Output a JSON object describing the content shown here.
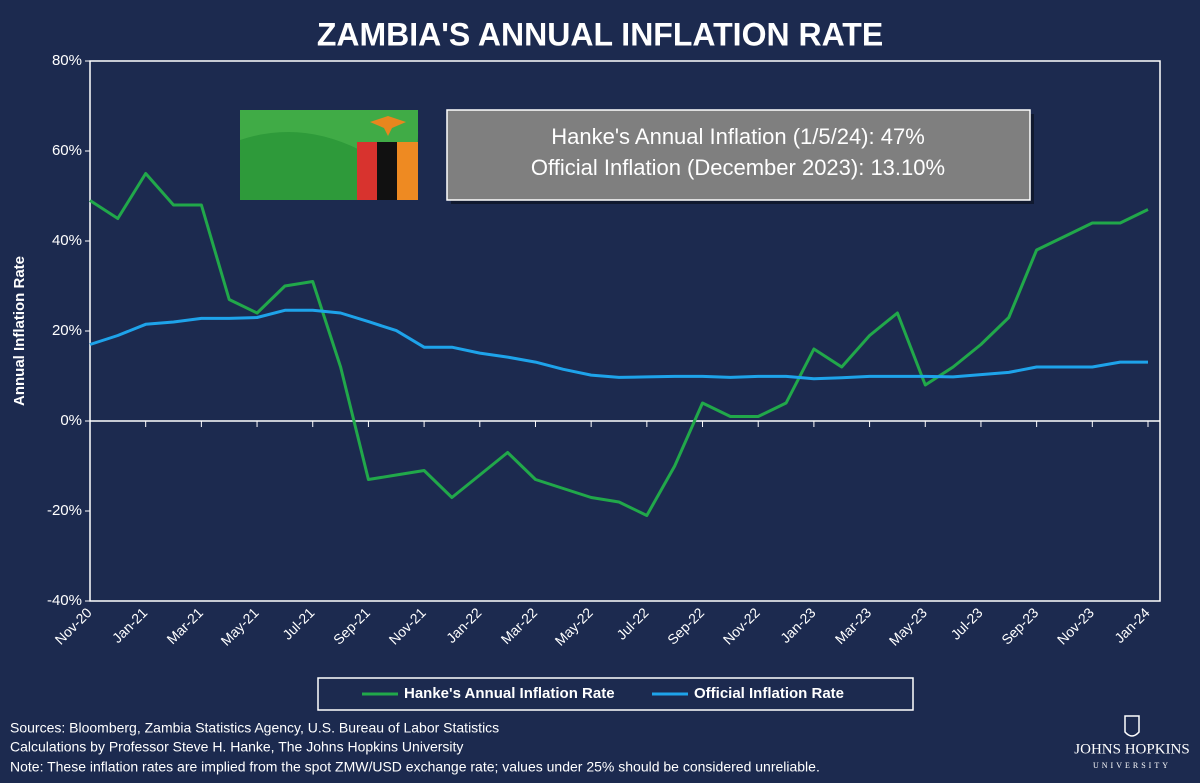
{
  "chart_data": {
    "type": "line",
    "title": "ZAMBIA'S ANNUAL INFLATION RATE",
    "ylabel": "Annual Inflation Rate",
    "annotations": [
      "Hanke's Annual Inflation (1/5/24): 47%",
      "Official Inflation (December 2023): 13.10%"
    ],
    "footnotes": [
      "Sources: Bloomberg, Zambia Statistics Agency, U.S. Bureau of Labor Statistics",
      "Calculations by Professor Steve H. Hanke, The Johns Hopkins University",
      "Note: These inflation rates are implied from the spot ZMW/USD exchange rate; values under 25% should be considered unreliable."
    ],
    "logo": [
      "JOHNS HOPKINS",
      "UNIVERSITY"
    ],
    "x": [
      "2020-11",
      "2020-12",
      "2021-01",
      "2021-02",
      "2021-03",
      "2021-04",
      "2021-05",
      "2021-06",
      "2021-07",
      "2021-08",
      "2021-09",
      "2021-10",
      "2021-11",
      "2021-12",
      "2022-01",
      "2022-02",
      "2022-03",
      "2022-04",
      "2022-05",
      "2022-06",
      "2022-07",
      "2022-08",
      "2022-09",
      "2022-10",
      "2022-11",
      "2022-12",
      "2023-01",
      "2023-02",
      "2023-03",
      "2023-04",
      "2023-05",
      "2023-06",
      "2023-07",
      "2023-08",
      "2023-09",
      "2023-10",
      "2023-11",
      "2023-12",
      "2024-01"
    ],
    "series": [
      {
        "name": "Hanke's Annual Inflation Rate",
        "color": "#21a84a",
        "values": [
          49,
          45,
          55,
          48,
          48,
          27,
          24,
          30,
          31,
          12,
          -13,
          -12,
          -11,
          -17,
          -12,
          -7,
          -13,
          -15,
          -17,
          -18,
          -21,
          -10,
          4,
          1,
          1,
          4,
          16,
          12,
          19,
          24,
          8,
          12,
          17,
          23,
          38,
          41,
          44,
          44,
          47
        ]
      },
      {
        "name": "Official Inflation Rate",
        "color": "#1ea3ea",
        "values": [
          17,
          19,
          21.5,
          22,
          22.8,
          22.8,
          23,
          24.6,
          24.6,
          24,
          22.1,
          20.1,
          16.4,
          16.4,
          15.1,
          14.2,
          13.1,
          11.5,
          10.2,
          9.7,
          9.8,
          9.9,
          9.9,
          9.7,
          9.9,
          9.9,
          9.4,
          9.6,
          9.9,
          9.9,
          9.9,
          9.8,
          10.3,
          10.8,
          12,
          12,
          12,
          13.1,
          13.1
        ]
      }
    ],
    "xlim": [
      "2020-11",
      "2024-01"
    ],
    "xticks": [
      {
        "value": "2020-11",
        "label": "Nov-20"
      },
      {
        "value": "2021-01",
        "label": "Jan-21"
      },
      {
        "value": "2021-03",
        "label": "Mar-21"
      },
      {
        "value": "2021-05",
        "label": "May-21"
      },
      {
        "value": "2021-07",
        "label": "Jul-21"
      },
      {
        "value": "2021-09",
        "label": "Sep-21"
      },
      {
        "value": "2021-11",
        "label": "Nov-21"
      },
      {
        "value": "2022-01",
        "label": "Jan-22"
      },
      {
        "value": "2022-03",
        "label": "Mar-22"
      },
      {
        "value": "2022-05",
        "label": "May-22"
      },
      {
        "value": "2022-07",
        "label": "Jul-22"
      },
      {
        "value": "2022-09",
        "label": "Sep-22"
      },
      {
        "value": "2022-11",
        "label": "Nov-22"
      },
      {
        "value": "2023-01",
        "label": "Jan-23"
      },
      {
        "value": "2023-03",
        "label": "Mar-23"
      },
      {
        "value": "2023-05",
        "label": "May-23"
      },
      {
        "value": "2023-07",
        "label": "Jul-23"
      },
      {
        "value": "2023-09",
        "label": "Sep-23"
      },
      {
        "value": "2023-11",
        "label": "Nov-23"
      },
      {
        "value": "2024-01",
        "label": "Jan-24"
      }
    ],
    "ylim": [
      -40,
      80
    ],
    "yticks": [
      {
        "value": -40,
        "label": "-40%"
      },
      {
        "value": -20,
        "label": "-20%"
      },
      {
        "value": 0,
        "label": "0%"
      },
      {
        "value": 20,
        "label": "20%"
      },
      {
        "value": 40,
        "label": "40%"
      },
      {
        "value": 60,
        "label": "60%"
      },
      {
        "value": 80,
        "label": "80%"
      }
    ],
    "legend": "bottom"
  }
}
